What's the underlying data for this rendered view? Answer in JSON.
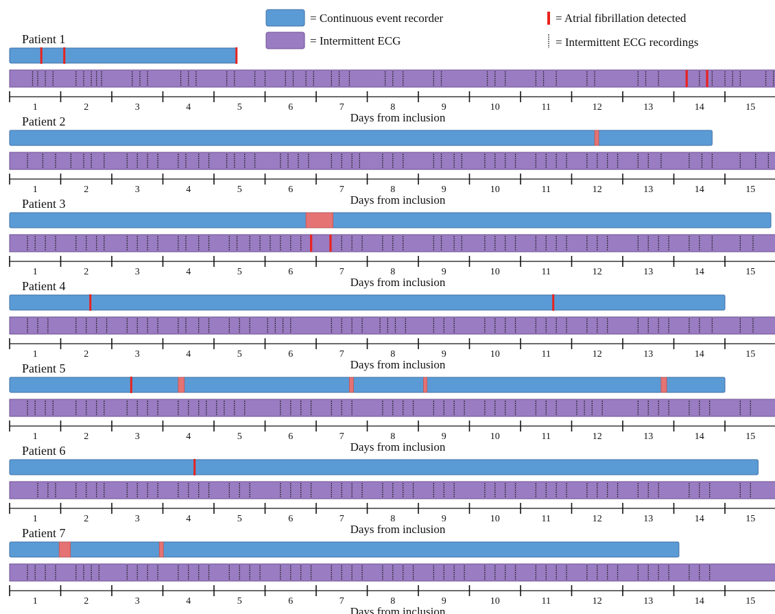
{
  "chart_data": {
    "type": "timeline",
    "xlabel": "Days from inclusion",
    "day_labels": [
      "1",
      "2",
      "3",
      "4",
      "5",
      "6",
      "7",
      "8",
      "9",
      "10",
      "11",
      "12",
      "13",
      "14",
      "15"
    ],
    "legend": {
      "placement": "top",
      "items": [
        {
          "id": "cer",
          "label": "= Continuous event recorder",
          "kind": "box"
        },
        {
          "id": "iecg",
          "label": "= Intermittent ECG",
          "kind": "box"
        },
        {
          "id": "af",
          "label": "= Atrial fibrillation detected",
          "kind": "red-mark"
        },
        {
          "id": "rec",
          "label": "= Intermittent ECG recordings",
          "kind": "dotted-tick"
        }
      ]
    },
    "colors": {
      "continuous_recorder": "#5b9bd5",
      "continuous_recorder_border": "#3d6fa6",
      "intermittent_ecg": "#9a7cc2",
      "intermittent_ecg_border": "#6d4f93",
      "af_mark": "#e8231e",
      "af_episode": "#e57373",
      "recording_tick": "#1a1a1a"
    },
    "patients": [
      {
        "name": "Patient 1",
        "recorder_end_day": 4.45,
        "af_recorder": [
          [
            0.6,
            0.63
          ],
          [
            1.05,
            1.08
          ],
          [
            4.42,
            4.45
          ]
        ],
        "af_ecg": [
          13.25,
          13.65
        ],
        "ecg_recordings": [
          [
            0.45,
            0.55,
            0.7,
            0.85
          ],
          [
            1.3,
            1.45,
            1.6,
            1.7,
            1.8
          ],
          [
            2.4,
            2.55,
            2.7
          ],
          [
            3.35,
            3.5,
            3.65
          ],
          [
            4.25,
            4.4
          ],
          [
            4.8,
            5.0
          ],
          [
            5.4,
            5.55,
            5.8,
            5.95
          ],
          [
            6.3,
            6.45,
            6.65
          ],
          [
            7.35,
            7.5,
            7.7
          ],
          [
            8.3,
            8.45
          ],
          [
            9.35,
            9.5,
            9.7
          ],
          [
            10.3,
            10.45,
            10.7
          ],
          [
            11.3,
            11.45
          ],
          [
            12.3,
            12.45,
            12.7
          ],
          [
            13.5,
            13.75
          ],
          [
            14.0,
            14.15,
            14.3
          ],
          [
            14.8,
            14.95
          ]
        ]
      },
      {
        "name": "Patient 2",
        "recorder_end_day": 13.75,
        "af_recorder": [
          [
            11.45,
            11.53
          ]
        ],
        "af_ecg": [],
        "ecg_recordings": [
          [
            0.35,
            0.65,
            0.9
          ],
          [
            1.2,
            1.45,
            1.6,
            1.85
          ],
          [
            2.3,
            2.5,
            2.7,
            2.9
          ],
          [
            3.3,
            3.45,
            3.7,
            3.9
          ],
          [
            4.25,
            4.4,
            4.6,
            4.8
          ],
          [
            5.3,
            5.45,
            5.65,
            5.85
          ],
          [
            6.3,
            6.5,
            6.7,
            6.85
          ],
          [
            7.3,
            7.5,
            7.7
          ],
          [
            8.3,
            8.45,
            8.7,
            8.85
          ],
          [
            9.3,
            9.5,
            9.7,
            9.9
          ],
          [
            10.3,
            10.5,
            10.7,
            10.9
          ],
          [
            11.3,
            11.5,
            11.7,
            11.9
          ],
          [
            12.3,
            12.5,
            12.75
          ],
          [
            13.3,
            13.55,
            13.75
          ],
          [
            14.3,
            14.6,
            14.85
          ]
        ]
      },
      {
        "name": "Patient 3",
        "recorder_end_day": 14.9,
        "af_recorder": [
          [
            5.8,
            6.33
          ]
        ],
        "af_ecg": [
          5.9,
          6.28
        ],
        "ecg_recordings": [
          [
            0.35,
            0.5,
            0.7,
            0.9
          ],
          [
            1.3,
            1.5,
            1.7,
            1.85
          ],
          [
            2.3,
            2.5,
            2.7,
            2.9
          ],
          [
            3.3,
            3.45,
            3.7,
            3.9
          ],
          [
            4.3,
            4.45,
            4.7,
            4.9
          ],
          [
            5.1,
            5.3,
            5.5,
            5.7
          ],
          [
            6.5,
            6.7,
            6.9
          ],
          [
            7.3,
            7.5,
            7.7
          ],
          [
            8.3,
            8.45,
            8.7,
            8.85
          ],
          [
            9.3,
            9.5,
            9.7,
            9.9
          ],
          [
            10.3,
            10.5,
            10.7,
            10.9
          ],
          [
            11.3,
            11.5,
            11.7
          ],
          [
            12.3,
            12.5,
            12.7,
            12.9
          ],
          [
            13.3,
            13.5,
            13.75
          ],
          [
            14.3,
            14.55
          ]
        ]
      },
      {
        "name": "Patient 4",
        "recorder_end_day": 14.0,
        "af_recorder": [
          [
            1.56,
            1.59
          ],
          [
            10.62,
            10.65
          ]
        ],
        "af_ecg": [],
        "ecg_recordings": [
          [
            0.35,
            0.55,
            0.75
          ],
          [
            1.3,
            1.5,
            1.7,
            1.9
          ],
          [
            2.3,
            2.5,
            2.7,
            2.9
          ],
          [
            3.3,
            3.45,
            3.7,
            3.9
          ],
          [
            4.3,
            4.5,
            4.7
          ],
          [
            5.05,
            5.2,
            5.35,
            5.5
          ],
          [
            6.3,
            6.5,
            6.7,
            6.9
          ],
          [
            7.25,
            7.4,
            7.55,
            7.75
          ],
          [
            8.3,
            8.5,
            8.7
          ],
          [
            9.3,
            9.5,
            9.7,
            9.9
          ],
          [
            10.3,
            10.5,
            10.7,
            10.9
          ],
          [
            11.3,
            11.5,
            11.7
          ],
          [
            12.3,
            12.5,
            12.7,
            12.9
          ],
          [
            13.3,
            13.5,
            13.75
          ],
          [
            14.3,
            14.55
          ]
        ]
      },
      {
        "name": "Patient 5",
        "recorder_end_day": 14.0,
        "af_recorder": [
          [
            2.36,
            2.39
          ],
          [
            3.3,
            3.42
          ],
          [
            6.65,
            6.73
          ],
          [
            8.1,
            8.17
          ],
          [
            12.75,
            12.86
          ]
        ],
        "af_ecg": [],
        "ecg_recordings": [
          [
            0.35,
            0.5,
            0.7,
            0.85
          ],
          [
            1.3,
            1.5,
            1.7,
            1.85
          ],
          [
            2.3,
            2.5,
            2.7,
            2.9
          ],
          [
            3.3,
            3.5,
            3.7,
            3.85
          ],
          [
            4.05,
            4.2,
            4.4,
            4.6
          ],
          [
            5.3,
            5.5,
            5.7,
            5.9
          ],
          [
            6.3,
            6.5,
            6.7
          ],
          [
            7.3,
            7.5,
            7.7,
            7.9
          ],
          [
            8.3,
            8.5,
            8.7,
            8.9
          ],
          [
            9.3,
            9.5,
            9.7,
            9.9
          ],
          [
            10.3,
            10.5,
            10.7
          ],
          [
            11.1,
            11.25,
            11.4,
            11.6
          ],
          [
            12.3,
            12.5,
            12.7,
            12.9
          ],
          [
            13.3,
            13.5,
            13.7
          ],
          [
            14.3,
            14.5
          ]
        ]
      },
      {
        "name": "Patient 6",
        "recorder_end_day": 14.65,
        "af_recorder": [
          [
            3.6,
            3.63
          ]
        ],
        "af_ecg": [],
        "ecg_recordings": [
          [
            0.55,
            0.75,
            0.9
          ],
          [
            1.3,
            1.5,
            1.7,
            1.85
          ],
          [
            2.3,
            2.5,
            2.7,
            2.9
          ],
          [
            3.3,
            3.5,
            3.7,
            3.9
          ],
          [
            4.3,
            4.5,
            4.7
          ],
          [
            5.3,
            5.5,
            5.7,
            5.9
          ],
          [
            6.3,
            6.5,
            6.7,
            6.9
          ],
          [
            7.3,
            7.5,
            7.7,
            7.9
          ],
          [
            8.3,
            8.5,
            8.7
          ],
          [
            9.3,
            9.5,
            9.7,
            9.9
          ],
          [
            10.3,
            10.5,
            10.7,
            10.9
          ],
          [
            11.3,
            11.5,
            11.7,
            11.9
          ],
          [
            12.3,
            12.5,
            12.7
          ],
          [
            13.3,
            13.5,
            13.7
          ],
          [
            14.3,
            14.5
          ]
        ]
      },
      {
        "name": "Patient 7",
        "recorder_end_day": 13.1,
        "af_recorder": [
          [
            0.97,
            1.19
          ],
          [
            2.93,
            3.01
          ]
        ],
        "af_ecg": [],
        "ecg_recordings": [
          [
            0.35,
            0.5,
            0.7,
            0.9
          ],
          [
            1.3,
            1.45,
            1.6,
            1.75
          ],
          [
            2.3,
            2.5,
            2.7,
            2.9
          ],
          [
            3.3,
            3.5,
            3.7,
            3.9
          ],
          [
            4.3,
            4.5,
            4.7,
            4.9
          ],
          [
            5.3,
            5.5,
            5.7,
            5.9
          ],
          [
            6.3,
            6.5,
            6.7,
            6.9
          ],
          [
            7.3,
            7.5,
            7.7,
            7.9
          ],
          [
            8.3,
            8.5,
            8.7,
            8.9
          ],
          [
            9.3,
            9.5,
            9.7,
            9.9
          ],
          [
            10.3,
            10.5,
            10.7,
            10.9
          ],
          [
            11.3,
            11.5,
            11.7,
            11.9
          ],
          [
            12.3,
            12.5,
            12.7,
            12.9
          ],
          [
            13.3,
            13.5,
            13.7
          ]
        ]
      }
    ]
  }
}
